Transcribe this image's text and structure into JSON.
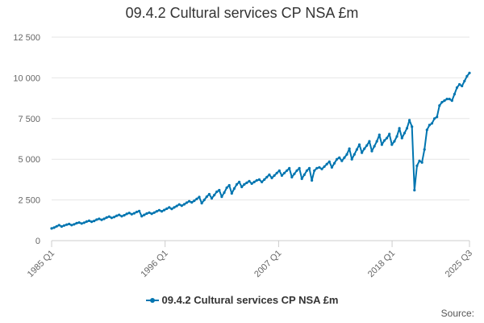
{
  "chart_data": {
    "type": "line",
    "title": "09.4.2 Cultural services CP NSA £m",
    "xlabel": "",
    "ylabel": "",
    "ylim": [
      0,
      12500
    ],
    "yticks": [
      "0",
      "2 500",
      "5 000",
      "7 500",
      "10 000",
      "12 500"
    ],
    "ytick_values": [
      0,
      2500,
      5000,
      7500,
      10000,
      12500
    ],
    "xticks": [
      "1985 Q1",
      "1996 Q1",
      "2007 Q1",
      "2018 Q1",
      "2025 Q3"
    ],
    "x_start": "1985 Q1",
    "x_end": "2025 Q3",
    "grid": "horizontal",
    "legend_position": "bottom",
    "series": [
      {
        "name": "09.4.2 Cultural services CP NSA £m",
        "color": "#0075b0",
        "values": [
          750,
          800,
          880,
          950,
          870,
          930,
          980,
          1020,
          950,
          1000,
          1070,
          1110,
          1050,
          1100,
          1170,
          1220,
          1160,
          1210,
          1290,
          1340,
          1280,
          1340,
          1420,
          1480,
          1400,
          1450,
          1530,
          1580,
          1500,
          1560,
          1640,
          1700,
          1620,
          1680,
          1760,
          1820,
          1500,
          1580,
          1660,
          1720,
          1650,
          1720,
          1800,
          1870,
          1800,
          1880,
          1960,
          2040,
          1950,
          2040,
          2130,
          2220,
          2150,
          2230,
          2330,
          2420,
          2350,
          2450,
          2560,
          2680,
          2300,
          2500,
          2700,
          2850,
          2600,
          2800,
          3000,
          3100,
          2700,
          2950,
          3250,
          3400,
          2900,
          3200,
          3450,
          3600,
          3300,
          3450,
          3550,
          3650,
          3500,
          3600,
          3700,
          3750,
          3600,
          3750,
          3900,
          4050,
          3850,
          4000,
          4150,
          4300,
          4000,
          4150,
          4300,
          4450,
          3900,
          4100,
          4300,
          4450,
          3800,
          4050,
          4300,
          4450,
          3700,
          4300,
          4450,
          4500,
          4400,
          4550,
          4700,
          4850,
          4500,
          4750,
          5000,
          5100,
          4900,
          5100,
          5300,
          5650,
          5000,
          5300,
          5600,
          5900,
          5400,
          5650,
          5850,
          6100,
          5500,
          5800,
          6100,
          6500,
          5900,
          6150,
          6300,
          6550,
          5900,
          6100,
          6400,
          6900,
          6300,
          6600,
          6900,
          7400,
          7000,
          3100,
          4600,
          4900,
          4800,
          5600,
          6800,
          7100,
          7200,
          7500,
          7600,
          8300,
          8500,
          8600,
          8700,
          8700,
          8600,
          9000,
          9400,
          9600,
          9500,
          9800,
          10100,
          10300
        ]
      }
    ],
    "source_label": "Source:"
  }
}
